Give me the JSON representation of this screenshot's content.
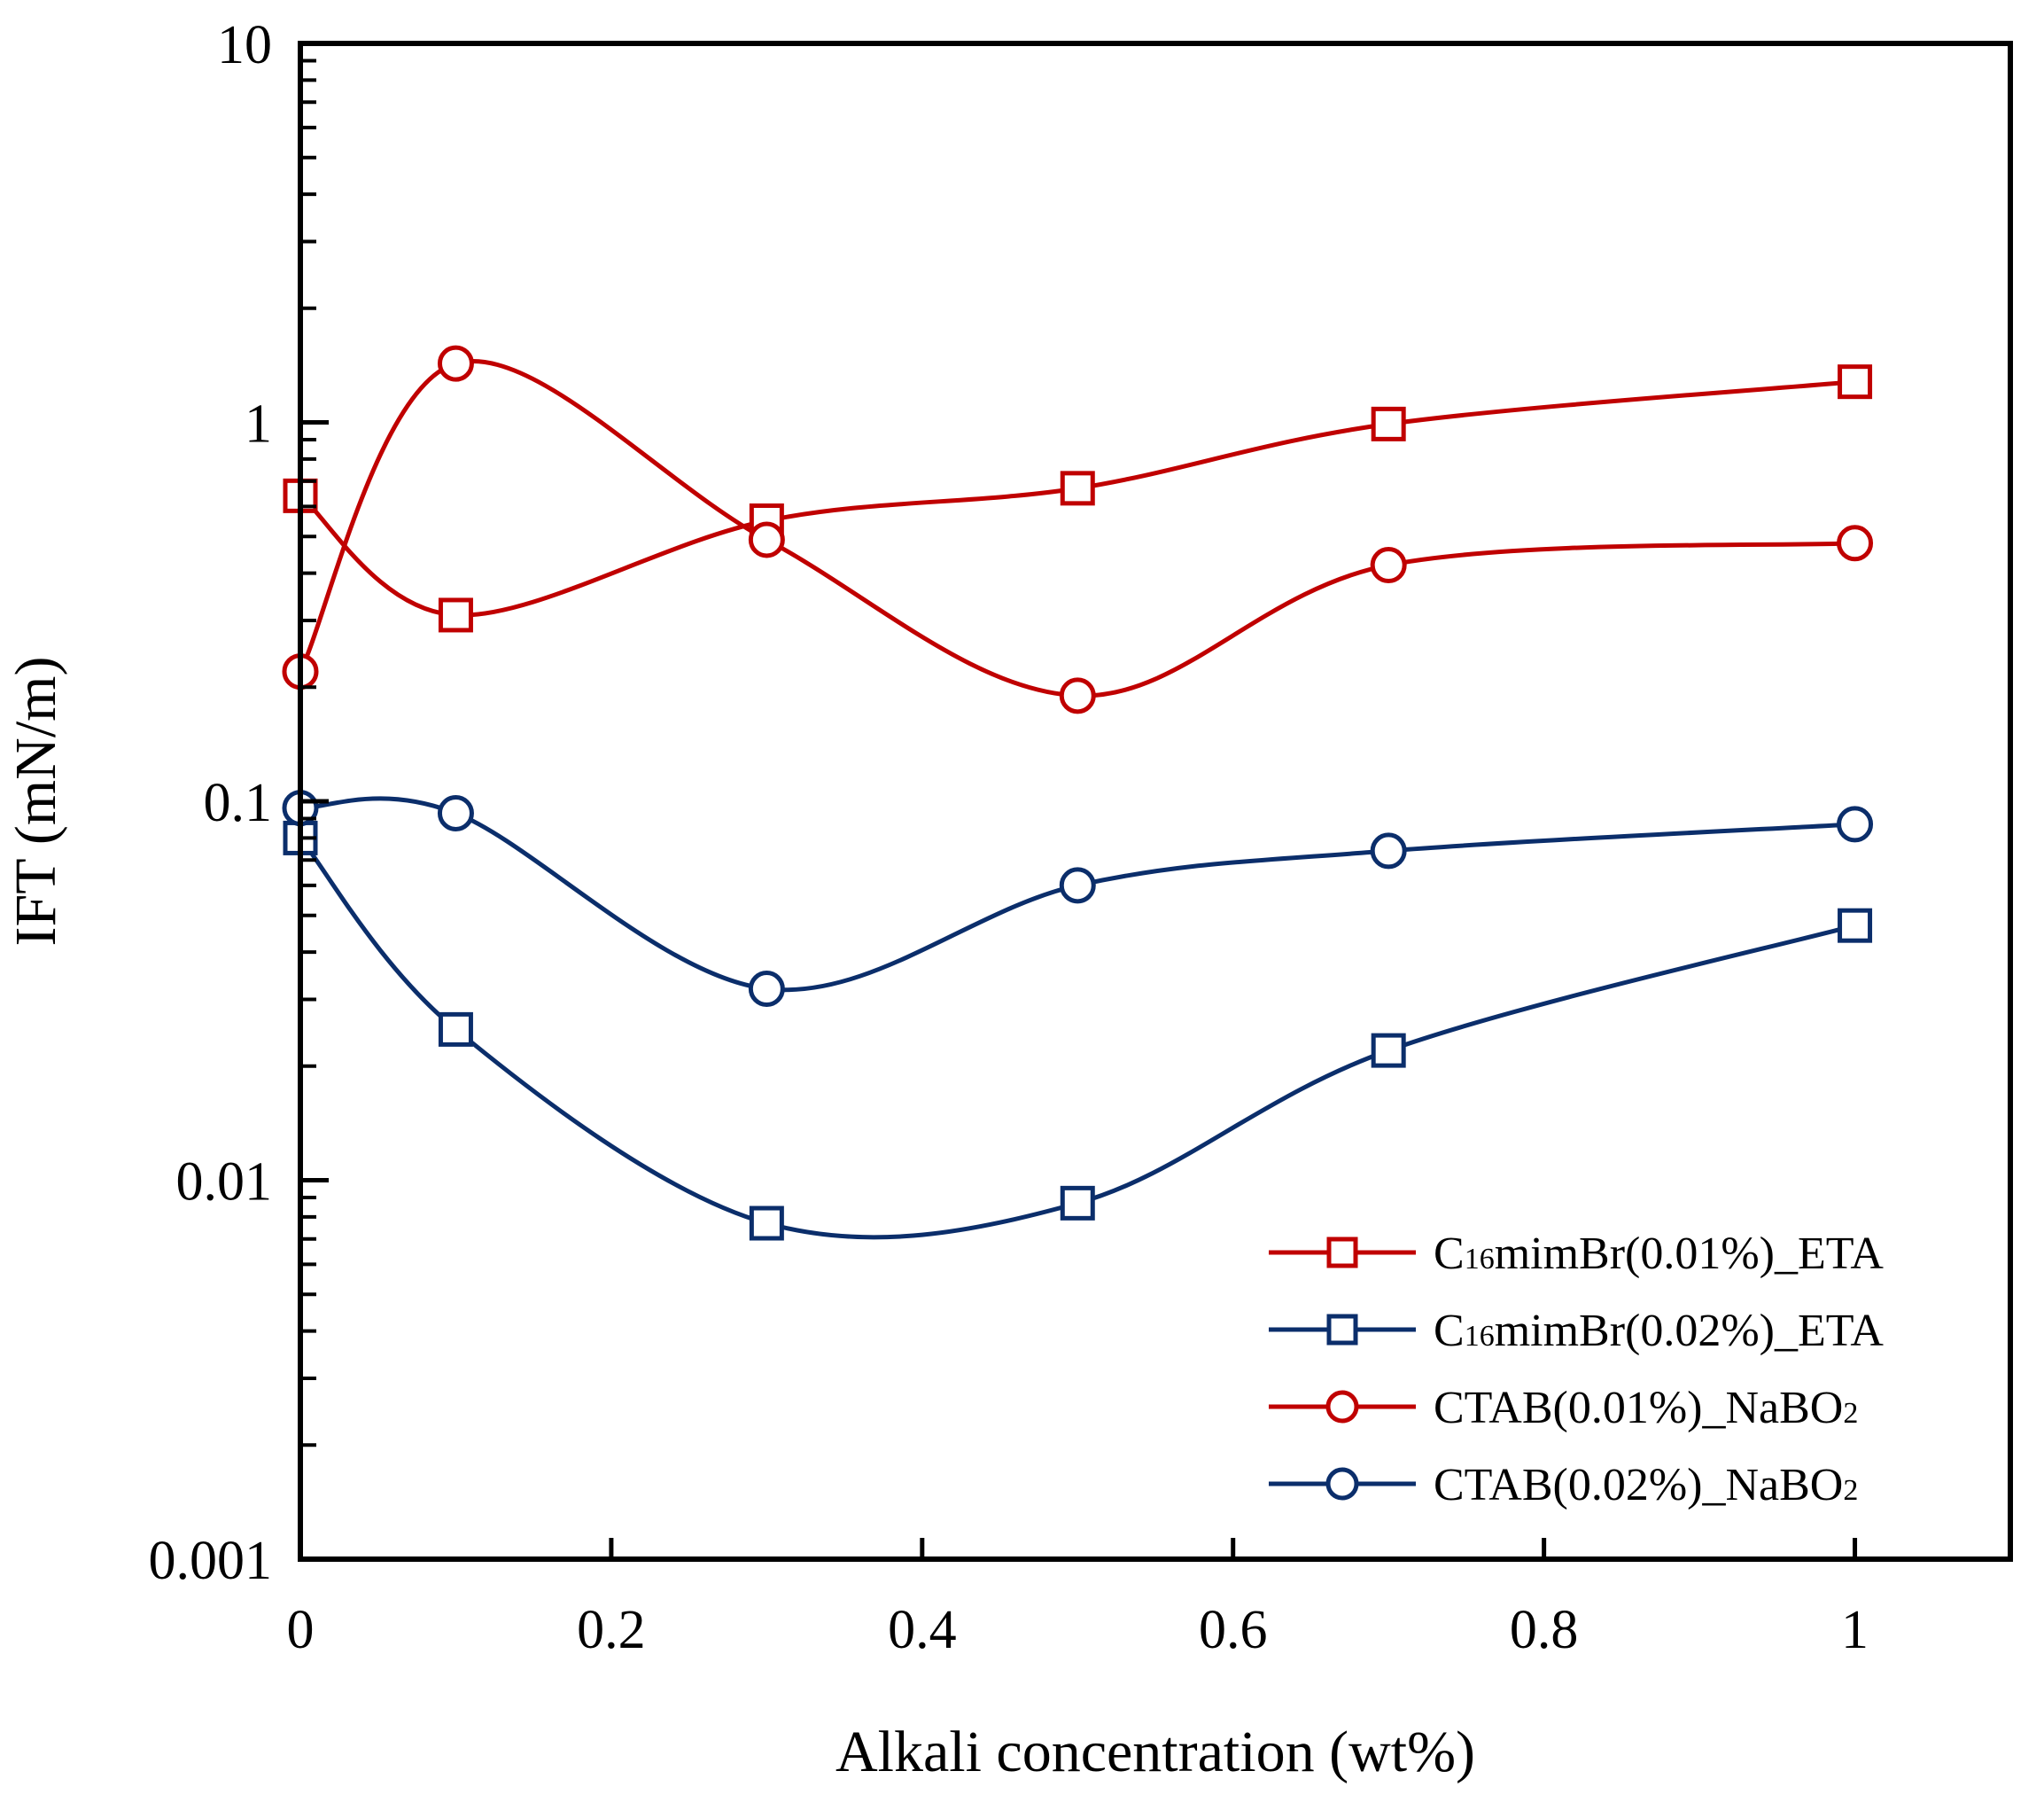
{
  "chart_data": {
    "type": "line",
    "title": "",
    "xlabel": "Alkali concentration (wt%)",
    "ylabel": "IFT (mN/m)",
    "xlim": [
      0,
      1.1
    ],
    "ylim": [
      0.001,
      10
    ],
    "yscale": "log",
    "grid": false,
    "legend_position": "bottom-right",
    "x_ticks": [
      0,
      0.2,
      0.4,
      0.6,
      0.8,
      1
    ],
    "x_tick_labels": [
      "0",
      "0.2",
      "0.4",
      "0.6",
      "0.8",
      "1"
    ],
    "y_ticks": [
      0.001,
      0.01,
      0.1,
      1,
      10
    ],
    "y_tick_labels": [
      "0.001",
      "0.01",
      "0.1",
      "1",
      "10"
    ],
    "series": [
      {
        "name": "C16mimBr(0.01%)_ETA",
        "label_parts": {
          "prefix": "C",
          "sub": "16",
          "suffix": "mimBr(0.01%)_ETA"
        },
        "color": "#C00000",
        "marker": "square",
        "x": [
          0,
          0.1,
          0.3,
          0.5,
          0.7,
          1
        ],
        "y": [
          0.64,
          0.31,
          0.55,
          0.67,
          0.99,
          1.28
        ]
      },
      {
        "name": "C16mimBr(0.02%)_ETA",
        "label_parts": {
          "prefix": "C",
          "sub": "16",
          "suffix": "mimBr(0.02%)_ETA"
        },
        "color": "#0B2E6B",
        "marker": "square",
        "x": [
          0,
          0.1,
          0.3,
          0.5,
          0.7,
          1
        ],
        "y": [
          0.08,
          0.025,
          0.0077,
          0.0087,
          0.022,
          0.047
        ]
      },
      {
        "name": "CTAB(0.01%)_NaBO2",
        "label_parts": {
          "prefix": "CTAB(0.01%)_NaBO",
          "sub": "2",
          "suffix": ""
        },
        "color": "#C00000",
        "marker": "circle",
        "x": [
          0,
          0.1,
          0.3,
          0.5,
          0.7,
          1
        ],
        "y": [
          0.22,
          1.43,
          0.49,
          0.19,
          0.42,
          0.48
        ]
      },
      {
        "name": "CTAB(0.02%)_NaBO2",
        "label_parts": {
          "prefix": "CTAB(0.02%)_NaBO",
          "sub": "2",
          "suffix": ""
        },
        "color": "#0B2E6B",
        "marker": "circle",
        "x": [
          0,
          0.1,
          0.3,
          0.5,
          0.7,
          1
        ],
        "y": [
          0.096,
          0.093,
          0.032,
          0.06,
          0.074,
          0.087
        ]
      }
    ]
  }
}
